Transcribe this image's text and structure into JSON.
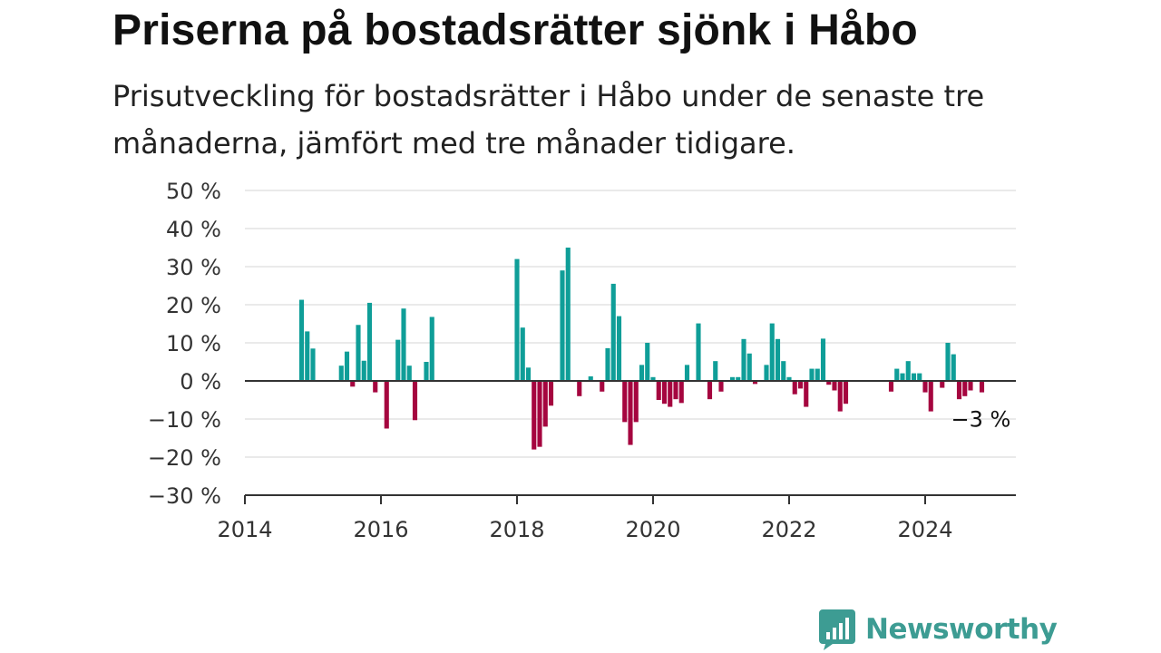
{
  "header": {
    "title": "Priserna på bostadsrätter sjönk i Håbo",
    "subtitle": "Prisutveckling för bostadsrätter i Håbo under de senaste tre månaderna, jämfört med tre månader tidigare."
  },
  "brand": {
    "name": "Newsworthy"
  },
  "colors": {
    "positive": "#0f9e98",
    "negative": "#a5053f",
    "grid": "#dddddd",
    "axis": "#333333",
    "brand": "#3d9c93"
  },
  "chart_data": {
    "type": "bar",
    "title": "Priserna på bostadsrätter sjönk i Håbo",
    "subtitle": "Prisutveckling för bostadsrätter i Håbo under de senaste tre månaderna, jämfört med tre månader tidigare.",
    "xlabel": "",
    "ylabel": "",
    "x_unit": "month",
    "xlim": [
      "2014-01",
      "2025-05"
    ],
    "ylim": [
      -30,
      50
    ],
    "yticks": [
      50,
      40,
      30,
      20,
      10,
      0,
      -10,
      -20,
      -30
    ],
    "ytick_labels": [
      "50 %",
      "40 %",
      "30 %",
      "20 %",
      "10 %",
      "0 %",
      "−10 %",
      "−20 %",
      "−30 %"
    ],
    "xticks": [
      "2014-01",
      "2016-01",
      "2018-01",
      "2020-01",
      "2022-01",
      "2024-01"
    ],
    "xtick_labels": [
      "2014",
      "2016",
      "2018",
      "2020",
      "2022",
      "2024"
    ],
    "grid": true,
    "series": [
      {
        "x": [
          "2014-11",
          "2014-12",
          "2015-01",
          "2015-06",
          "2015-07",
          "2015-08",
          "2015-09",
          "2015-10",
          "2015-11",
          "2015-12",
          "2016-02",
          "2016-04",
          "2016-05",
          "2016-06",
          "2016-07",
          "2016-09",
          "2016-10",
          "2018-01",
          "2018-02",
          "2018-03",
          "2018-04",
          "2018-05",
          "2018-06",
          "2018-07",
          "2018-09",
          "2018-10",
          "2018-12",
          "2019-02",
          "2019-04",
          "2019-05",
          "2019-06",
          "2019-07",
          "2019-08",
          "2019-09",
          "2019-10",
          "2019-11",
          "2019-12",
          "2020-01",
          "2020-02",
          "2020-03",
          "2020-04",
          "2020-05",
          "2020-06",
          "2020-07",
          "2020-09",
          "2020-11",
          "2020-12",
          "2021-01",
          "2021-03",
          "2021-04",
          "2021-05",
          "2021-06",
          "2021-07",
          "2021-09",
          "2021-10",
          "2021-11",
          "2021-12",
          "2022-01",
          "2022-02",
          "2022-03",
          "2022-04",
          "2022-05",
          "2022-06",
          "2022-07",
          "2022-08",
          "2022-09",
          "2022-10",
          "2022-11",
          "2023-07",
          "2023-08",
          "2023-09",
          "2023-10",
          "2023-11",
          "2023-12",
          "2024-01",
          "2024-02",
          "2024-04",
          "2024-05",
          "2024-06",
          "2024-07",
          "2024-08",
          "2024-09",
          "2024-11"
        ],
        "values": [
          21.3,
          13,
          8.5,
          4,
          7.7,
          -1.5,
          14.7,
          5.3,
          20.5,
          -3,
          -12.5,
          10.8,
          19,
          4,
          -10.3,
          5,
          16.8,
          32,
          14,
          3.5,
          -18,
          -17.3,
          -12,
          -6.5,
          29,
          35,
          -4,
          1.2,
          -2.8,
          8.6,
          25.5,
          17,
          -10.8,
          -16.8,
          -10.8,
          4.2,
          10,
          1,
          -5,
          -6,
          -6.8,
          -4.8,
          -5.8,
          4.2,
          15.1,
          -4.8,
          5.2,
          -2.8,
          1,
          1,
          11,
          7.2,
          -0.8,
          4.2,
          15.1,
          11,
          5.2,
          1,
          -3.5,
          -2,
          -6.8,
          3.2,
          3.2,
          11.1,
          -1,
          -2.5,
          -8,
          -6,
          -2.8,
          3.2,
          2,
          5.2,
          2,
          2,
          -3,
          -8,
          -1.8,
          10,
          7,
          -4.8,
          -4,
          -2.5,
          -3
        ]
      }
    ],
    "annotations": [
      {
        "x": "2024-11",
        "y": -3,
        "text": "−3 %"
      }
    ]
  }
}
